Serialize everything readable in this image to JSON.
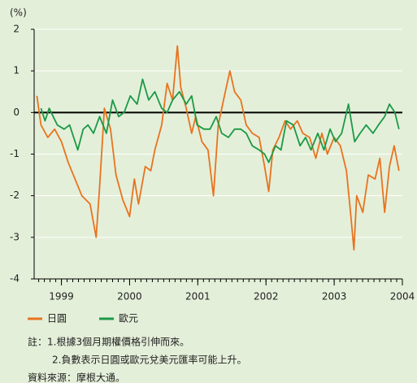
{
  "chart_data": {
    "type": "line",
    "y_label": "(%)",
    "xlim": [
      1998.6,
      2004.0
    ],
    "xticks": [
      1999,
      2000,
      2001,
      2002,
      2003,
      2004
    ],
    "ylim": [
      -4,
      2
    ],
    "yticks": [
      -4,
      -3,
      -2,
      -1,
      0,
      1,
      2
    ],
    "grid": true,
    "series": [
      {
        "name": "日圓",
        "color": "#e8731e",
        "x": [
          1998.64,
          1998.7,
          1998.8,
          1998.9,
          1999.0,
          1999.1,
          1999.2,
          1999.3,
          1999.42,
          1999.51,
          1999.56,
          1999.63,
          1999.72,
          1999.8,
          1999.9,
          2000.0,
          2000.07,
          2000.13,
          2000.23,
          2000.31,
          2000.37,
          2000.47,
          2000.55,
          2000.63,
          2000.7,
          2000.75,
          2000.83,
          2000.91,
          2000.97,
          2001.06,
          2001.15,
          2001.23,
          2001.3,
          2001.39,
          2001.47,
          2001.54,
          2001.63,
          2001.71,
          2001.8,
          2001.9,
          2001.98,
          2002.04,
          2002.1,
          2002.19,
          2002.28,
          2002.36,
          2002.46,
          2002.54,
          2002.64,
          2002.73,
          2002.82,
          2002.9,
          2003.0,
          2003.09,
          2003.18,
          2003.24,
          2003.29,
          2003.33,
          2003.42,
          2003.5,
          2003.6,
          2003.67,
          2003.74,
          2003.81,
          2003.88,
          2003.95
        ],
        "values": [
          0.4,
          -0.3,
          -0.6,
          -0.4,
          -0.7,
          -1.2,
          -1.6,
          -2.0,
          -2.2,
          -3.0,
          -1.8,
          0.1,
          -0.4,
          -1.5,
          -2.1,
          -2.5,
          -1.6,
          -2.2,
          -1.3,
          -1.4,
          -0.9,
          -0.3,
          0.7,
          0.3,
          1.6,
          0.6,
          0.1,
          -0.5,
          -0.1,
          -0.7,
          -0.9,
          -2.0,
          -0.3,
          0.4,
          1.0,
          0.5,
          0.3,
          -0.3,
          -0.5,
          -0.6,
          -1.3,
          -1.9,
          -0.9,
          -0.6,
          -0.2,
          -0.4,
          -0.2,
          -0.5,
          -0.6,
          -1.1,
          -0.5,
          -1.0,
          -0.6,
          -0.8,
          -1.4,
          -2.4,
          -3.3,
          -2.0,
          -2.4,
          -1.5,
          -1.6,
          -1.1,
          -2.4,
          -1.3,
          -0.8,
          -1.4
        ]
      },
      {
        "name": "歐元",
        "color": "#1a9a46",
        "x": [
          1998.7,
          1998.76,
          1998.82,
          1998.94,
          1999.04,
          1999.12,
          1999.24,
          1999.32,
          1999.39,
          1999.47,
          1999.56,
          1999.66,
          1999.75,
          1999.84,
          1999.92,
          2000.01,
          2000.11,
          2000.19,
          2000.28,
          2000.37,
          2000.47,
          2000.55,
          2000.63,
          2000.73,
          2000.83,
          2000.91,
          2000.99,
          2001.09,
          2001.18,
          2001.27,
          2001.35,
          2001.45,
          2001.54,
          2001.63,
          2001.71,
          2001.8,
          2001.9,
          2001.98,
          2002.04,
          2002.14,
          2002.22,
          2002.3,
          2002.4,
          2002.5,
          2002.58,
          2002.66,
          2002.76,
          2002.85,
          2002.94,
          2003.02,
          2003.11,
          2003.21,
          2003.3,
          2003.38,
          2003.47,
          2003.57,
          2003.65,
          2003.74,
          2003.81,
          2003.89,
          2003.95
        ],
        "values": [
          0.1,
          -0.2,
          0.1,
          -0.3,
          -0.4,
          -0.3,
          -0.9,
          -0.4,
          -0.3,
          -0.5,
          -0.1,
          -0.5,
          0.3,
          -0.1,
          0.0,
          0.4,
          0.2,
          0.8,
          0.3,
          0.5,
          0.1,
          0.0,
          0.3,
          0.5,
          0.2,
          0.4,
          -0.3,
          -0.4,
          -0.4,
          -0.1,
          -0.5,
          -0.6,
          -0.4,
          -0.4,
          -0.5,
          -0.8,
          -0.9,
          -1.0,
          -1.2,
          -0.8,
          -0.9,
          -0.2,
          -0.3,
          -0.8,
          -0.6,
          -0.9,
          -0.5,
          -0.9,
          -0.4,
          -0.7,
          -0.5,
          0.2,
          -0.7,
          -0.5,
          -0.3,
          -0.5,
          -0.3,
          -0.1,
          0.2,
          0.0,
          -0.4
        ]
      }
    ],
    "notes": [
      "註：1.根據3個月期權價格引伸而來。",
      "2.負數表示日圓或歐元兌美元匯率可能上升。",
      "資料來源：摩根大通。"
    ]
  }
}
